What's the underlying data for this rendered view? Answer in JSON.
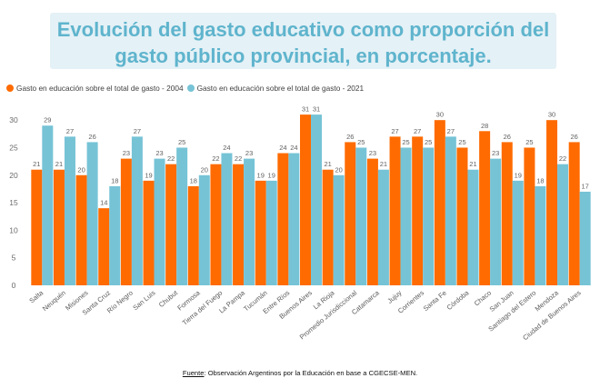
{
  "chart_data": {
    "type": "bar",
    "title": "Evolución del gasto educativo como proporción del\ngasto público provincial, en porcentaje.",
    "categories": [
      "Salta",
      "Neuquén",
      "Misiones",
      "Santa Cruz",
      "Río Negro",
      "San Luis",
      "Chubut",
      "Formosa",
      "Tierra del Fuego",
      "La Pampa",
      "Tucumán",
      "Entre Ríos",
      "Buenos Aires",
      "La Rioja",
      "Promedio Jurisdiccional",
      "Catamarca",
      "Jujuy",
      "Corrientes",
      "Santa Fe",
      "Córdoba",
      "Chaco",
      "San Juan",
      "Santiago del Estero",
      "Mendoza",
      "Ciudad de Buenos Aires"
    ],
    "series": [
      {
        "name": "Gasto en educación sobre el total de gasto - 2004",
        "color": "#ff6b00",
        "values": [
          21,
          21,
          20,
          14,
          23,
          19,
          22,
          18,
          22,
          22,
          19,
          24,
          31,
          21,
          26,
          23,
          27,
          27,
          30,
          25,
          28,
          26,
          25,
          30,
          26
        ]
      },
      {
        "name": "Gasto en educación sobre el total de gasto - 2021",
        "color": "#76c3d6",
        "values": [
          29,
          27,
          26,
          18,
          27,
          23,
          25,
          20,
          24,
          23,
          19,
          24,
          31,
          20,
          25,
          21,
          25,
          25,
          27,
          21,
          23,
          19,
          18,
          22,
          17
        ]
      }
    ],
    "xlabel": "",
    "ylabel": "",
    "ylim": [
      0,
      33
    ],
    "yticks": [
      0,
      5,
      10,
      15,
      20,
      25,
      30
    ],
    "grid": false,
    "legend_position": "top-left",
    "data_labels": true
  },
  "source": {
    "label": "Fuente",
    "text": ": Observación Argentinos por la Educación en base a CGECSE-MEN."
  }
}
